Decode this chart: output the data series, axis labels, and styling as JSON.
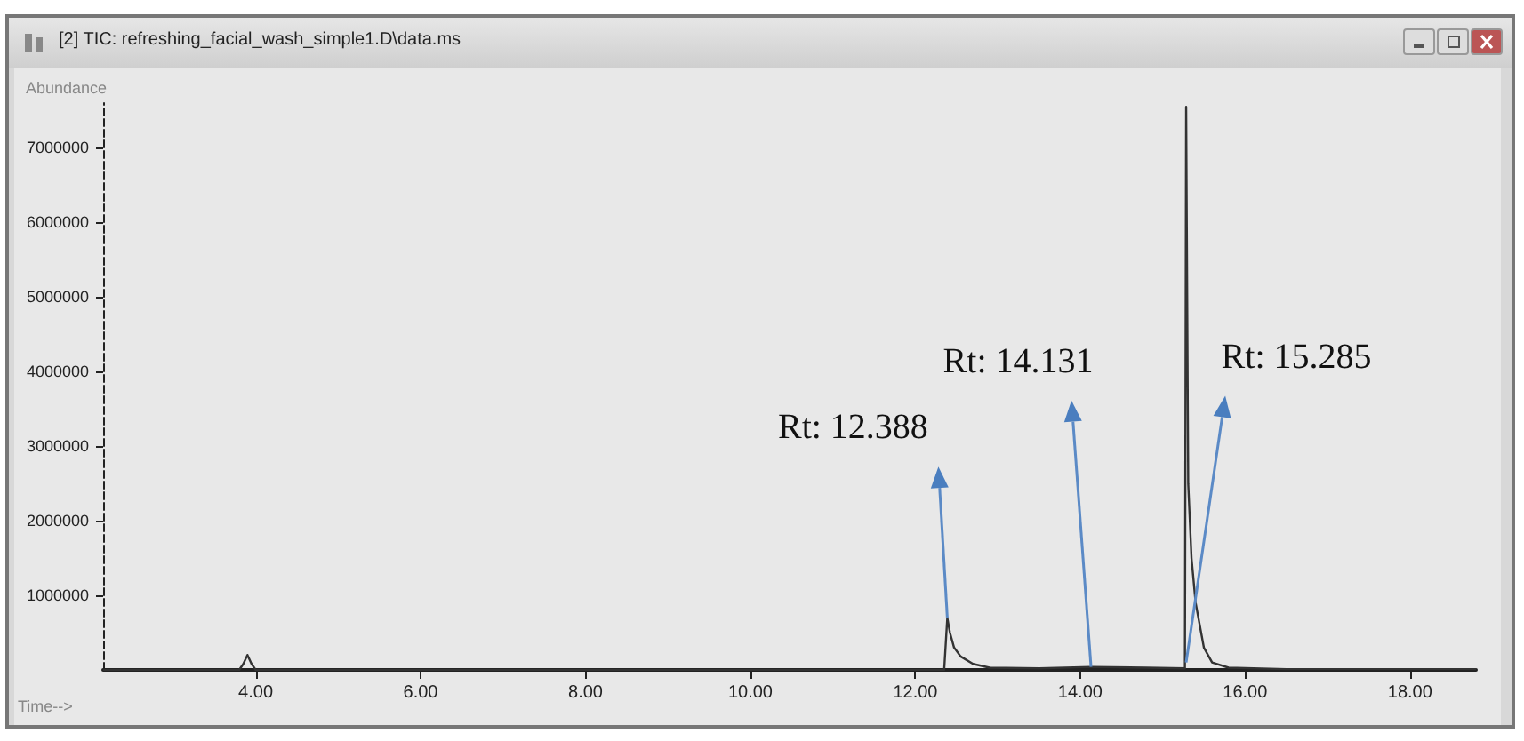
{
  "chart_data": {
    "type": "line",
    "title": "[2] TIC: refreshing_facial_wash_simple1.D\\data.ms",
    "xlabel": "Time-->",
    "ylabel": "Abundance",
    "x": [
      2.15,
      3.8,
      3.85,
      3.9,
      3.95,
      4.0,
      12.35,
      12.388,
      12.42,
      12.47,
      12.55,
      12.7,
      12.9,
      13.5,
      14.131,
      14.8,
      15.27,
      15.285,
      15.31,
      15.35,
      15.4,
      15.5,
      15.6,
      15.8,
      16.5,
      18.8
    ],
    "series": [
      {
        "color": "#333333",
        "values": [
          0,
          0,
          80000,
          200000,
          80000,
          0,
          0,
          700000,
          500000,
          300000,
          180000,
          80000,
          30000,
          20000,
          40000,
          30000,
          20000,
          7550000,
          2500000,
          1500000,
          900000,
          300000,
          100000,
          30000,
          10000,
          10000
        ]
      }
    ],
    "xlim": [
      2.15,
      18.8
    ],
    "ylim": [
      0,
      7600000
    ],
    "xticks": [
      {
        "value": 4,
        "label": "4.00"
      },
      {
        "value": 6,
        "label": "6.00"
      },
      {
        "value": 8,
        "label": "8.00"
      },
      {
        "value": 10,
        "label": "10.00"
      },
      {
        "value": 12,
        "label": "12.00"
      },
      {
        "value": 14,
        "label": "14.00"
      },
      {
        "value": 16,
        "label": "16.00"
      },
      {
        "value": 18,
        "label": "18.00"
      }
    ],
    "yticks": [
      1000000,
      2000000,
      3000000,
      4000000,
      5000000,
      6000000,
      7000000
    ],
    "annotations": [
      {
        "text": "Rt: 12.388",
        "x": 12.388,
        "y": 700000
      },
      {
        "text": "Rt: 14.131",
        "x": 14.131,
        "y": 40000
      },
      {
        "text": "Rt: 15.285",
        "x": 15.285,
        "y": 100000
      }
    ],
    "grid": false,
    "marker": "none",
    "line_style": "solid"
  }
}
